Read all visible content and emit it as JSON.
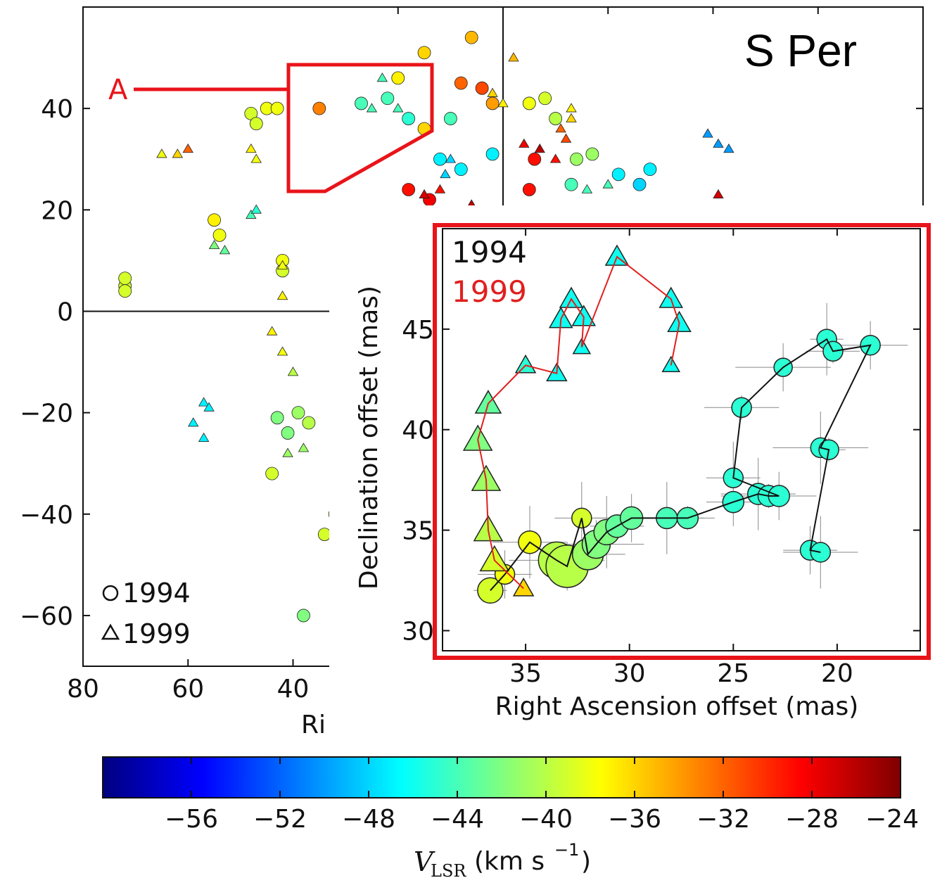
{
  "chart_data": [
    {
      "type": "scatter",
      "title": "S Per",
      "xlabel": "Ri",
      "ylabel": "",
      "xlim": [
        80,
        -80
      ],
      "ylim": [
        -70,
        60
      ],
      "x_ticks": [
        80,
        60,
        40
      ],
      "y_ticks": [
        40,
        20,
        0,
        -20,
        -40,
        -60
      ],
      "region_label": "A",
      "legend": {
        "placement": "bottom-left",
        "entries": [
          {
            "marker": "○",
            "label": "1994"
          },
          {
            "marker": "△",
            "label": "1999"
          }
        ]
      },
      "series": [
        {
          "name": "1994",
          "marker": "circle",
          "points": [
            {
              "x": 72,
              "y": 5,
              "v": -39
            },
            {
              "x": 72,
              "y": 6.5,
              "v": -39
            },
            {
              "x": 72,
              "y": 4,
              "v": -39
            },
            {
              "x": 48,
              "y": 39,
              "v": -39
            },
            {
              "x": 45,
              "y": 40,
              "v": -38
            },
            {
              "x": 43,
              "y": 40,
              "v": -38
            },
            {
              "x": 47,
              "y": 37,
              "v": -39
            },
            {
              "x": 42,
              "y": 10,
              "v": -38
            },
            {
              "x": 42,
              "y": 8,
              "v": -39
            },
            {
              "x": 54,
              "y": 15,
              "v": -38
            },
            {
              "x": 55,
              "y": 18,
              "v": -37
            },
            {
              "x": 43,
              "y": -21,
              "v": -42
            },
            {
              "x": 41,
              "y": -24,
              "v": -42
            },
            {
              "x": 39,
              "y": -20,
              "v": -41
            },
            {
              "x": 37,
              "y": -22,
              "v": -40
            },
            {
              "x": 44,
              "y": -32,
              "v": -39
            },
            {
              "x": 35,
              "y": 40,
              "v": -33
            },
            {
              "x": 27,
              "y": 41,
              "v": -44
            },
            {
              "x": 22,
              "y": 42,
              "v": -44
            },
            {
              "x": 18,
              "y": 38,
              "v": -45
            },
            {
              "x": 15,
              "y": 36,
              "v": -36
            },
            {
              "x": 20,
              "y": 46,
              "v": -37
            },
            {
              "x": 15,
              "y": 51,
              "v": -36
            },
            {
              "x": 6,
              "y": 54,
              "v": -35
            },
            {
              "x": 8,
              "y": 45,
              "v": -32
            },
            {
              "x": 4,
              "y": 44,
              "v": -31
            },
            {
              "x": 2,
              "y": 41,
              "v": -34
            },
            {
              "x": 10,
              "y": 38,
              "v": -44
            },
            {
              "x": 12,
              "y": 30,
              "v": -47
            },
            {
              "x": 8,
              "y": 28,
              "v": -47
            },
            {
              "x": 2,
              "y": 31,
              "v": -47
            },
            {
              "x": 18,
              "y": 24,
              "v": -29
            },
            {
              "x": 14,
              "y": 22,
              "v": -28
            },
            {
              "x": -5,
              "y": 41,
              "v": -38
            },
            {
              "x": -8,
              "y": 42,
              "v": -39
            },
            {
              "x": -10,
              "y": 38,
              "v": -40
            },
            {
              "x": -6,
              "y": 30,
              "v": -29
            },
            {
              "x": -5,
              "y": 24,
              "v": -29
            },
            {
              "x": -14,
              "y": 30,
              "v": -41
            },
            {
              "x": -17,
              "y": 31,
              "v": -41
            },
            {
              "x": -13,
              "y": 25,
              "v": -44
            },
            {
              "x": -22,
              "y": 27,
              "v": -47
            },
            {
              "x": -28,
              "y": 28,
              "v": -47
            },
            {
              "x": -26,
              "y": 25,
              "v": -48
            },
            {
              "x": 38,
              "y": -60,
              "v": -42
            },
            {
              "x": 32,
              "y": -40,
              "v": -40
            },
            {
              "x": 34,
              "y": -44,
              "v": -39
            }
          ]
        },
        {
          "name": "1999",
          "marker": "triangle",
          "points": [
            {
              "x": 65,
              "y": 31,
              "v": -38
            },
            {
              "x": 62,
              "y": 31,
              "v": -36
            },
            {
              "x": 60,
              "y": 32,
              "v": -32
            },
            {
              "x": 48,
              "y": 32,
              "v": -37
            },
            {
              "x": 47,
              "y": 30,
              "v": -38
            },
            {
              "x": 55,
              "y": 13,
              "v": -42
            },
            {
              "x": 53,
              "y": 12,
              "v": -43
            },
            {
              "x": 48,
              "y": 19,
              "v": -44
            },
            {
              "x": 47,
              "y": 20,
              "v": -45
            },
            {
              "x": 42,
              "y": 9,
              "v": -38
            },
            {
              "x": 42,
              "y": 3,
              "v": -37
            },
            {
              "x": 44,
              "y": -4,
              "v": -37
            },
            {
              "x": 42,
              "y": -8,
              "v": -38
            },
            {
              "x": 40,
              "y": -12,
              "v": -40
            },
            {
              "x": 57,
              "y": -18,
              "v": -47
            },
            {
              "x": 56,
              "y": -19,
              "v": -47
            },
            {
              "x": 59,
              "y": -22,
              "v": -47
            },
            {
              "x": 57,
              "y": -25,
              "v": -47
            },
            {
              "x": 41,
              "y": -28,
              "v": -41
            },
            {
              "x": 38,
              "y": -27,
              "v": -41
            },
            {
              "x": 25,
              "y": 40,
              "v": -44
            },
            {
              "x": 23,
              "y": 46,
              "v": -44
            },
            {
              "x": 20,
              "y": 40,
              "v": -44
            },
            {
              "x": 10,
              "y": 30,
              "v": -48
            },
            {
              "x": 11,
              "y": 27,
              "v": -48
            },
            {
              "x": 12,
              "y": 24,
              "v": -29
            },
            {
              "x": 15,
              "y": 23,
              "v": -27
            },
            {
              "x": 6,
              "y": 21,
              "v": -26
            },
            {
              "x": 0,
              "y": 41,
              "v": -37
            },
            {
              "x": 2,
              "y": 43,
              "v": -36
            },
            {
              "x": -2,
              "y": 50,
              "v": -35
            },
            {
              "x": -4,
              "y": 33,
              "v": -28
            },
            {
              "x": -7,
              "y": 32,
              "v": -26
            },
            {
              "x": -10,
              "y": 30,
              "v": -29
            },
            {
              "x": -13,
              "y": 38,
              "v": -36
            },
            {
              "x": -13,
              "y": 40,
              "v": -37
            },
            {
              "x": -11,
              "y": 36,
              "v": -32
            },
            {
              "x": -12,
              "y": 34,
              "v": -31
            },
            {
              "x": -16,
              "y": 24,
              "v": -44
            },
            {
              "x": -20,
              "y": 25,
              "v": -44
            },
            {
              "x": -39,
              "y": 35,
              "v": -50
            },
            {
              "x": -41,
              "y": 33,
              "v": -50
            },
            {
              "x": -43,
              "y": 32,
              "v": -50
            },
            {
              "x": -41,
              "y": 23,
              "v": -27
            }
          ]
        }
      ]
    },
    {
      "type": "scatter",
      "title": "",
      "xlabel": "Right Ascension offset (mas)",
      "ylabel": "Declination offset (mas)",
      "xlim": [
        39,
        16
      ],
      "ylim": [
        29,
        50
      ],
      "x_ticks": [
        35,
        30,
        25,
        20
      ],
      "y_ticks": [
        45,
        40,
        35,
        30
      ],
      "legend": {
        "placement": "top-left",
        "entries": [
          {
            "label": "1994",
            "color": "#111111"
          },
          {
            "label": "1999",
            "color": "#e0201e"
          }
        ]
      },
      "series": [
        {
          "name": "1994",
          "marker": "circle",
          "connected": true,
          "points": [
            {
              "x": 36.7,
              "y": 32.0,
              "v": -39,
              "size": 18
            },
            {
              "x": 36.0,
              "y": 32.8,
              "v": -38,
              "size": 14
            },
            {
              "x": 34.8,
              "y": 34.4,
              "v": -38,
              "size": 16
            },
            {
              "x": 33.5,
              "y": 33.5,
              "v": -40,
              "size": 26
            },
            {
              "x": 33.0,
              "y": 33.2,
              "v": -40,
              "size": 30
            },
            {
              "x": 32.3,
              "y": 35.6,
              "v": -39,
              "size": 14
            },
            {
              "x": 32.0,
              "y": 33.8,
              "v": -41,
              "size": 22
            },
            {
              "x": 31.6,
              "y": 34.3,
              "v": -42,
              "size": 20
            },
            {
              "x": 31.1,
              "y": 34.9,
              "v": -42,
              "size": 18
            },
            {
              "x": 30.6,
              "y": 35.2,
              "v": -43,
              "size": 16
            },
            {
              "x": 29.9,
              "y": 35.6,
              "v": -43,
              "size": 16
            },
            {
              "x": 28.2,
              "y": 35.6,
              "v": -44,
              "size": 15
            },
            {
              "x": 27.2,
              "y": 35.6,
              "v": -44,
              "size": 15
            },
            {
              "x": 25.0,
              "y": 36.4,
              "v": -45,
              "size": 15
            },
            {
              "x": 23.8,
              "y": 36.8,
              "v": -45,
              "size": 15
            },
            {
              "x": 23.3,
              "y": 36.7,
              "v": -45,
              "size": 15
            },
            {
              "x": 22.8,
              "y": 36.7,
              "v": -45,
              "size": 15
            },
            {
              "x": 25.0,
              "y": 37.6,
              "v": -45,
              "size": 14
            },
            {
              "x": 24.6,
              "y": 41.1,
              "v": -45,
              "size": 14
            },
            {
              "x": 22.6,
              "y": 43.1,
              "v": -45,
              "size": 13
            },
            {
              "x": 20.5,
              "y": 44.5,
              "v": -45,
              "size": 14
            },
            {
              "x": 20.2,
              "y": 43.9,
              "v": -45,
              "size": 14
            },
            {
              "x": 18.4,
              "y": 44.2,
              "v": -45,
              "size": 14
            },
            {
              "x": 20.8,
              "y": 39.1,
              "v": -45,
              "size": 14
            },
            {
              "x": 20.4,
              "y": 39.0,
              "v": -45,
              "size": 14
            },
            {
              "x": 21.3,
              "y": 34.0,
              "v": -45,
              "size": 14
            },
            {
              "x": 20.8,
              "y": 33.9,
              "v": -45,
              "size": 14
            }
          ]
        },
        {
          "name": "1999",
          "marker": "triangle",
          "connected": true,
          "points": [
            {
              "x": 35.1,
              "y": 32.1,
              "v": -36,
              "size": 14
            },
            {
              "x": 36.5,
              "y": 33.5,
              "v": -39,
              "size": 20
            },
            {
              "x": 36.8,
              "y": 35.0,
              "v": -40,
              "size": 20
            },
            {
              "x": 36.9,
              "y": 37.5,
              "v": -41,
              "size": 20
            },
            {
              "x": 37.3,
              "y": 39.5,
              "v": -42,
              "size": 20
            },
            {
              "x": 36.8,
              "y": 41.3,
              "v": -43,
              "size": 18
            },
            {
              "x": 35.0,
              "y": 43.2,
              "v": -45,
              "size": 14
            },
            {
              "x": 33.5,
              "y": 42.8,
              "v": -46,
              "size": 14
            },
            {
              "x": 33.3,
              "y": 45.5,
              "v": -46,
              "size": 16
            },
            {
              "x": 32.8,
              "y": 46.5,
              "v": -46,
              "size": 16
            },
            {
              "x": 32.2,
              "y": 45.6,
              "v": -46,
              "size": 16
            },
            {
              "x": 32.3,
              "y": 44.1,
              "v": -46,
              "size": 12
            },
            {
              "x": 30.6,
              "y": 48.6,
              "v": -46,
              "size": 16
            },
            {
              "x": 28.0,
              "y": 46.5,
              "v": -46,
              "size": 16
            },
            {
              "x": 27.6,
              "y": 45.3,
              "v": -46,
              "size": 16
            },
            {
              "x": 28.0,
              "y": 43.2,
              "v": -46,
              "size": 12
            }
          ]
        }
      ]
    },
    {
      "type": "heatmap",
      "title": "",
      "xlabel": "V",
      "xlabel_sub": "LSR",
      "xlabel_unit": "(km s",
      "xlabel_exp": "−1",
      "xlabel_close": ")",
      "colormap": "jet",
      "range": [
        -60,
        -24
      ],
      "ticks": [
        -56,
        -52,
        -48,
        -44,
        -40,
        -36,
        -32,
        -28,
        -24
      ],
      "tick_labels": [
        "−56",
        "−52",
        "−48",
        "−44",
        "−40",
        "−36",
        "−32",
        "−28",
        "−24"
      ]
    }
  ],
  "colors": {
    "highlight_frame": "#e8141a",
    "region_outline": "#e8141a",
    "axis": "#111111",
    "trail_1999": "#e0201e",
    "trail_1994": "#111111"
  }
}
